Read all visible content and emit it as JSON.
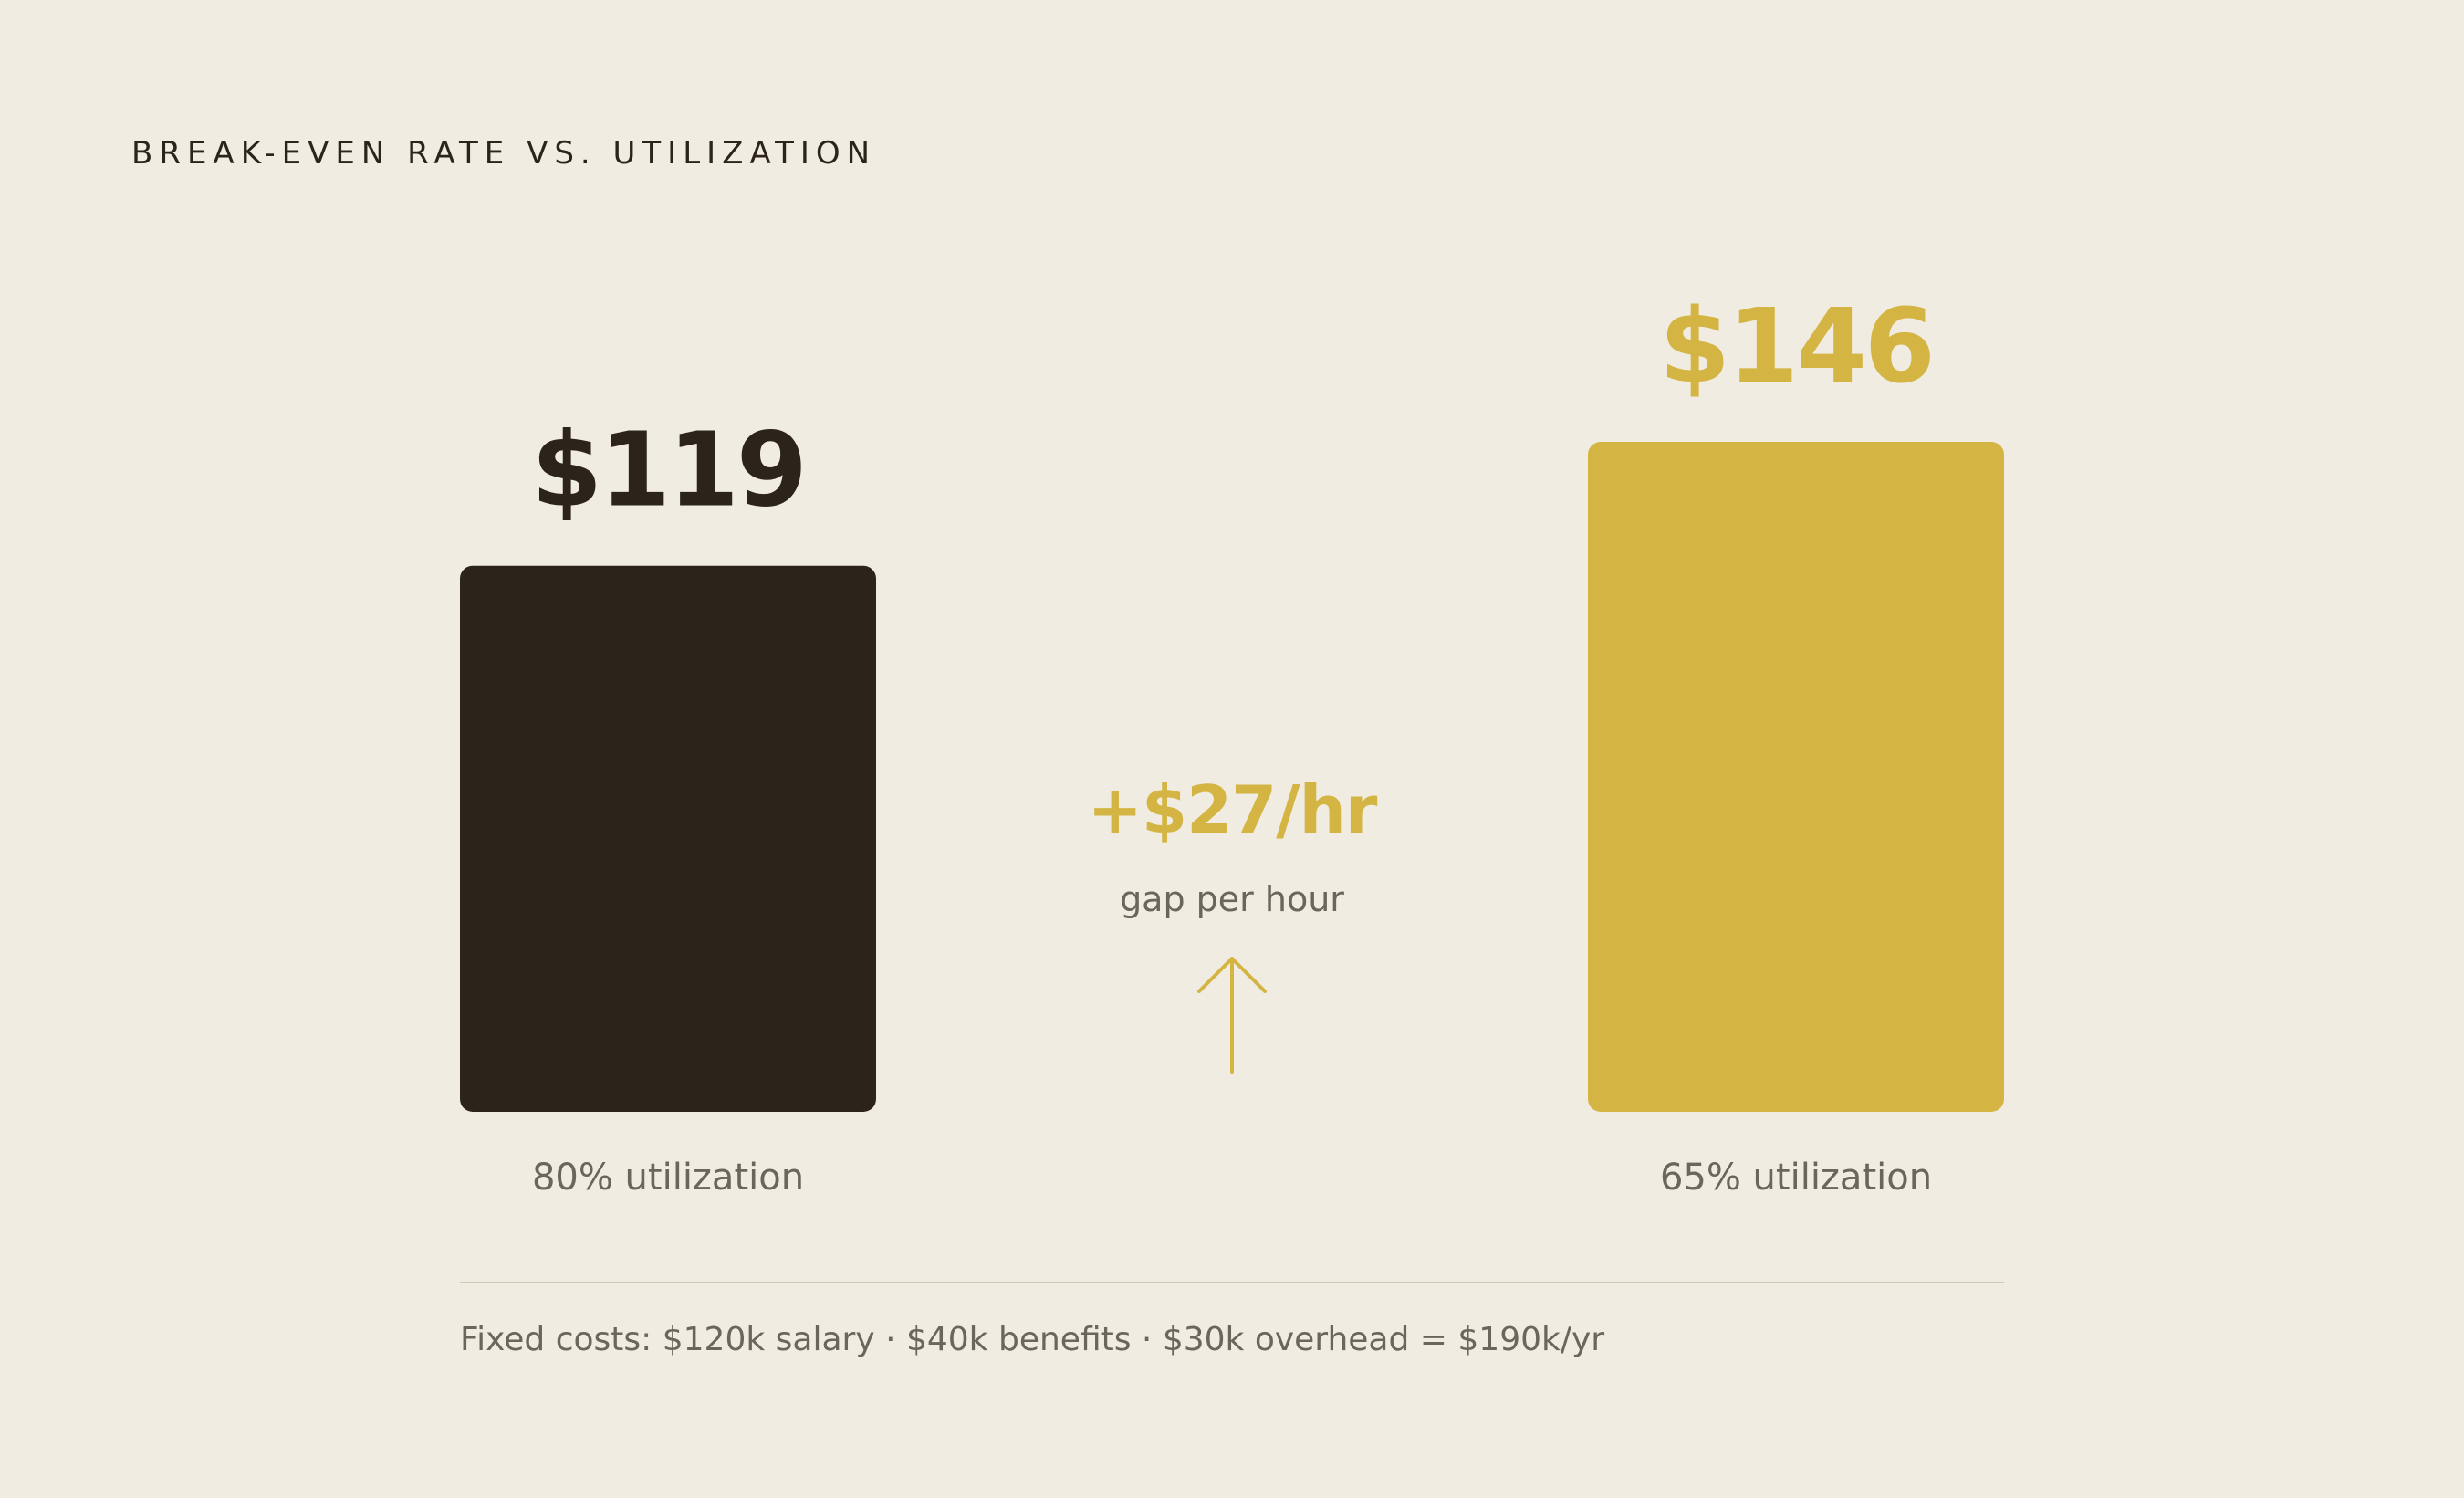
{
  "title": "BREAK-EVEN RATE VS. UTILIZATION",
  "chart_data": {
    "type": "bar",
    "categories": [
      "80% utilization",
      "65% utilization"
    ],
    "values": [
      119,
      146
    ],
    "value_labels": [
      "$119",
      "$146"
    ],
    "ylim": [
      0,
      146
    ],
    "grid": false,
    "colors": [
      "#2C241A",
      "#D4B543"
    ],
    "annotation": {
      "value": "+$27/hr",
      "label": "gap per hour",
      "icon": "arrow-up-icon",
      "color": "#D4B543"
    }
  },
  "footer": {
    "note": "Fixed costs: $120k salary · $40k benefits · $30k overhead = $190k/yr"
  }
}
